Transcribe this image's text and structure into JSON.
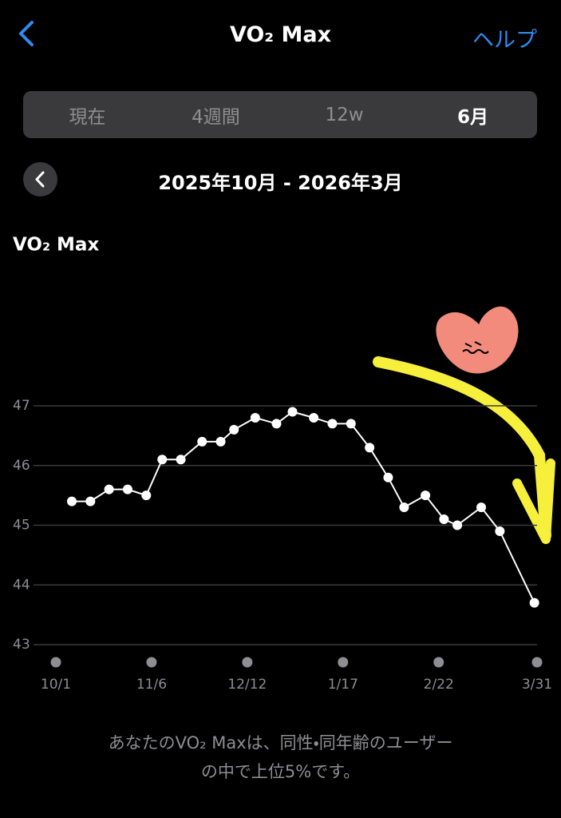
{
  "header": {
    "title": "VO₂ Max",
    "help": "ヘルプ"
  },
  "tabs": [
    "現在",
    "4週間",
    "12w",
    "6月"
  ],
  "range": "2025年10月 - 2026年3月",
  "chart_data": {
    "type": "line",
    "title": "VO₂ Max",
    "x": [
      6,
      13,
      20,
      27,
      34,
      40,
      47,
      55,
      62,
      67,
      75,
      83,
      89,
      97,
      104,
      111,
      118,
      125,
      131,
      139,
      146,
      151,
      160,
      167,
      180
    ],
    "values": [
      45.4,
      45.4,
      45.6,
      45.6,
      45.5,
      46.1,
      46.1,
      46.4,
      46.4,
      46.6,
      46.8,
      46.7,
      46.9,
      46.8,
      46.7,
      46.7,
      46.3,
      45.8,
      45.3,
      45.5,
      45.1,
      45.0,
      45.3,
      44.9,
      43.7
    ],
    "color": "#ffffff",
    "xlim": [
      0,
      181
    ],
    "xticks": [
      {
        "value": 0,
        "label": "10/1"
      },
      {
        "value": 36,
        "label": "11/6"
      },
      {
        "value": 72,
        "label": "12/12"
      },
      {
        "value": 108,
        "label": "1/17"
      },
      {
        "value": 144,
        "label": "2/22"
      },
      {
        "value": 181,
        "label": "3/31"
      }
    ],
    "ylim": [
      43,
      47
    ],
    "yticks": [
      43,
      44,
      45,
      46,
      47
    ],
    "grid": true
  },
  "footer": [
    "あなたのVO₂ Maxは、同性・同年齢のユーザー",
    "の中で上位5%です。"
  ]
}
